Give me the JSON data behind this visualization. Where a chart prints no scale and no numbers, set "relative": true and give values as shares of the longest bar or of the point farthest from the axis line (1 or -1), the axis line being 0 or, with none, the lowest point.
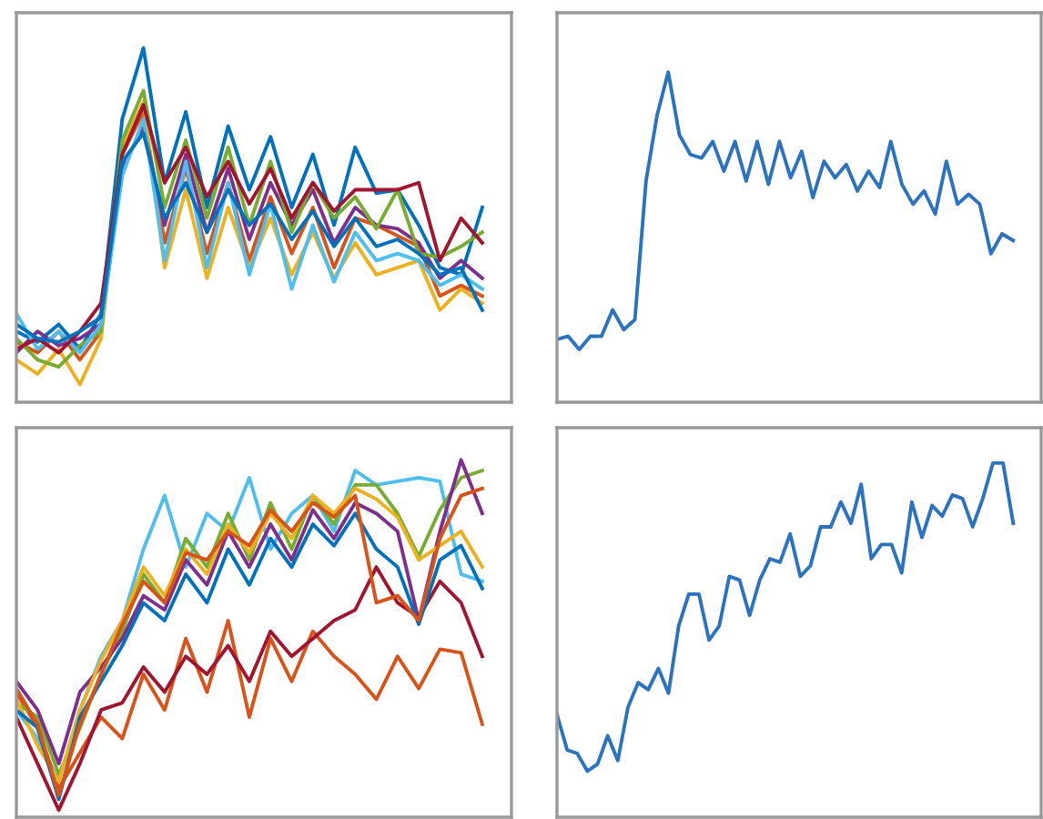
{
  "chart_data": [
    {
      "type": "line",
      "relative": true,
      "categories": [
        null,
        null,
        null,
        null,
        null,
        null,
        null,
        null,
        null,
        null,
        null,
        null,
        null,
        null,
        null,
        null,
        null,
        null,
        null,
        null,
        null,
        null,
        null
      ],
      "series": [
        {
          "color": "#0072bd",
          "values": [
            0.2,
            0.17,
            0.22,
            0.15,
            0.25,
            0.8,
            1.0,
            0.62,
            0.82,
            0.55,
            0.78,
            0.6,
            0.75,
            0.55,
            0.7,
            0.5,
            0.72,
            0.59,
            0.6,
            0.5,
            0.38,
            0.36,
            0.55
          ]
        },
        {
          "color": "#d95319",
          "values": [
            0.17,
            0.14,
            0.2,
            0.12,
            0.2,
            0.7,
            0.82,
            0.45,
            0.66,
            0.42,
            0.62,
            0.4,
            0.58,
            0.42,
            0.55,
            0.38,
            0.52,
            0.5,
            0.47,
            0.44,
            0.3,
            0.33,
            0.3
          ]
        },
        {
          "color": "#edb120",
          "values": [
            0.12,
            0.08,
            0.15,
            0.05,
            0.18,
            0.72,
            0.85,
            0.38,
            0.6,
            0.35,
            0.55,
            0.38,
            0.52,
            0.36,
            0.48,
            0.35,
            0.45,
            0.36,
            0.38,
            0.4,
            0.26,
            0.32,
            0.28
          ]
        },
        {
          "color": "#7e2f8e",
          "values": [
            0.14,
            0.2,
            0.16,
            0.18,
            0.22,
            0.66,
            0.78,
            0.5,
            0.7,
            0.48,
            0.66,
            0.46,
            0.62,
            0.5,
            0.6,
            0.45,
            0.55,
            0.5,
            0.49,
            0.45,
            0.35,
            0.4,
            0.35
          ]
        },
        {
          "color": "#77ac30",
          "values": [
            0.18,
            0.12,
            0.1,
            0.16,
            0.2,
            0.74,
            0.88,
            0.55,
            0.74,
            0.52,
            0.72,
            0.5,
            0.68,
            0.48,
            0.62,
            0.52,
            0.58,
            0.49,
            0.6,
            0.42,
            0.41,
            0.44,
            0.48
          ]
        },
        {
          "color": "#4dbeee",
          "values": [
            0.25,
            0.15,
            0.2,
            0.14,
            0.22,
            0.64,
            0.8,
            0.4,
            0.68,
            0.38,
            0.62,
            0.36,
            0.56,
            0.32,
            0.5,
            0.34,
            0.48,
            0.4,
            0.42,
            0.4,
            0.33,
            0.36,
            0.32
          ]
        },
        {
          "color": "#a2142f",
          "values": [
            0.15,
            0.18,
            0.14,
            0.2,
            0.28,
            0.7,
            0.84,
            0.62,
            0.72,
            0.58,
            0.68,
            0.56,
            0.66,
            0.52,
            0.62,
            0.54,
            0.6,
            0.6,
            0.6,
            0.62,
            0.4,
            0.52,
            0.45
          ]
        },
        {
          "color": "#0072bd",
          "values": [
            0.22,
            0.18,
            0.17,
            0.2,
            0.24,
            0.68,
            0.76,
            0.52,
            0.62,
            0.48,
            0.6,
            0.5,
            0.56,
            0.46,
            0.54,
            0.44,
            0.52,
            0.44,
            0.46,
            0.42,
            0.36,
            0.38,
            0.26
          ]
        }
      ]
    },
    {
      "type": "line",
      "relative": true,
      "categories": [
        null,
        null,
        null,
        null,
        null,
        null,
        null,
        null,
        null,
        null,
        null,
        null,
        null,
        null,
        null,
        null,
        null,
        null,
        null,
        null,
        null,
        null,
        null,
        null,
        null,
        null,
        null,
        null,
        null,
        null,
        null,
        null,
        null,
        null,
        null,
        null,
        null,
        null,
        null,
        null,
        null,
        null
      ],
      "series": [
        {
          "color": "#2b73c0",
          "values": [
            0.19,
            0.2,
            0.16,
            0.2,
            0.2,
            0.28,
            0.22,
            0.25,
            0.67,
            0.87,
            1.0,
            0.81,
            0.75,
            0.74,
            0.79,
            0.7,
            0.79,
            0.67,
            0.79,
            0.66,
            0.79,
            0.68,
            0.76,
            0.62,
            0.73,
            0.68,
            0.72,
            0.64,
            0.7,
            0.65,
            0.79,
            0.66,
            0.6,
            0.64,
            0.57,
            0.73,
            0.6,
            0.63,
            0.6,
            0.45,
            0.51,
            0.49
          ]
        }
      ]
    },
    {
      "type": "line",
      "relative": true,
      "categories": [
        null,
        null,
        null,
        null,
        null,
        null,
        null,
        null,
        null,
        null,
        null,
        null,
        null,
        null,
        null,
        null,
        null,
        null,
        null,
        null,
        null,
        null,
        null
      ],
      "series": [
        {
          "color": "#4dbeee",
          "values": [
            0.3,
            0.22,
            0.1,
            0.3,
            0.45,
            0.55,
            0.75,
            0.9,
            0.7,
            0.85,
            0.8,
            0.95,
            0.75,
            0.85,
            0.9,
            0.8,
            0.97,
            0.93,
            0.94,
            0.95,
            0.94,
            0.68,
            0.66
          ]
        },
        {
          "color": "#d95319",
          "values": [
            0.35,
            0.25,
            0.08,
            0.18,
            0.28,
            0.22,
            0.4,
            0.3,
            0.5,
            0.35,
            0.55,
            0.28,
            0.5,
            0.38,
            0.52,
            0.45,
            0.4,
            0.33,
            0.45,
            0.36,
            0.47,
            0.46,
            0.26
          ]
        },
        {
          "color": "#77ac30",
          "values": [
            0.32,
            0.28,
            0.12,
            0.25,
            0.4,
            0.52,
            0.68,
            0.6,
            0.78,
            0.7,
            0.85,
            0.72,
            0.88,
            0.75,
            0.9,
            0.82,
            0.93,
            0.93,
            0.85,
            0.73,
            0.86,
            0.95,
            0.97
          ]
        },
        {
          "color": "#7e2f8e",
          "values": [
            0.38,
            0.3,
            0.15,
            0.35,
            0.42,
            0.5,
            0.62,
            0.58,
            0.72,
            0.65,
            0.8,
            0.7,
            0.82,
            0.72,
            0.86,
            0.78,
            0.88,
            0.85,
            0.8,
            0.55,
            0.8,
            1.0,
            0.85
          ]
        },
        {
          "color": "#a2142f",
          "values": [
            0.28,
            0.15,
            0.02,
            0.15,
            0.3,
            0.32,
            0.42,
            0.35,
            0.45,
            0.4,
            0.48,
            0.38,
            0.52,
            0.45,
            0.5,
            0.55,
            0.58,
            0.7,
            0.6,
            0.56,
            0.66,
            0.6,
            0.45
          ]
        },
        {
          "color": "#edb120",
          "values": [
            0.33,
            0.2,
            0.1,
            0.3,
            0.44,
            0.55,
            0.7,
            0.62,
            0.75,
            0.68,
            0.82,
            0.74,
            0.85,
            0.78,
            0.9,
            0.85,
            0.92,
            0.89,
            0.84,
            0.72,
            0.76,
            0.8,
            0.7
          ]
        },
        {
          "color": "#0072bd",
          "values": [
            0.3,
            0.25,
            0.05,
            0.28,
            0.38,
            0.48,
            0.6,
            0.55,
            0.68,
            0.6,
            0.75,
            0.65,
            0.78,
            0.7,
            0.82,
            0.76,
            0.85,
            0.75,
            0.7,
            0.54,
            0.72,
            0.76,
            0.64
          ]
        },
        {
          "color": "#d95319",
          "values": [
            0.36,
            0.26,
            0.06,
            0.26,
            0.4,
            0.54,
            0.66,
            0.6,
            0.74,
            0.72,
            0.8,
            0.76,
            0.86,
            0.8,
            0.88,
            0.84,
            0.9,
            0.6,
            0.62,
            0.55,
            0.78,
            0.9,
            0.92
          ]
        }
      ]
    },
    {
      "type": "line",
      "relative": true,
      "categories": [
        null,
        null,
        null,
        null,
        null,
        null,
        null,
        null,
        null,
        null,
        null,
        null,
        null,
        null,
        null,
        null,
        null,
        null,
        null,
        null,
        null,
        null,
        null,
        null,
        null,
        null,
        null,
        null,
        null,
        null,
        null,
        null,
        null,
        null,
        null,
        null,
        null,
        null,
        null,
        null,
        null,
        null,
        null,
        null,
        null,
        null
      ],
      "series": [
        {
          "color": "#2b73c0",
          "values": [
            0.29,
            0.19,
            0.18,
            0.13,
            0.15,
            0.23,
            0.16,
            0.31,
            0.38,
            0.36,
            0.42,
            0.35,
            0.54,
            0.63,
            0.63,
            0.5,
            0.54,
            0.68,
            0.67,
            0.57,
            0.67,
            0.73,
            0.72,
            0.8,
            0.68,
            0.71,
            0.82,
            0.82,
            0.89,
            0.83,
            0.94,
            0.73,
            0.77,
            0.77,
            0.69,
            0.89,
            0.79,
            0.88,
            0.85,
            0.91,
            0.9,
            0.82,
            0.9,
            1.0,
            1.0,
            0.83
          ]
        }
      ]
    }
  ]
}
